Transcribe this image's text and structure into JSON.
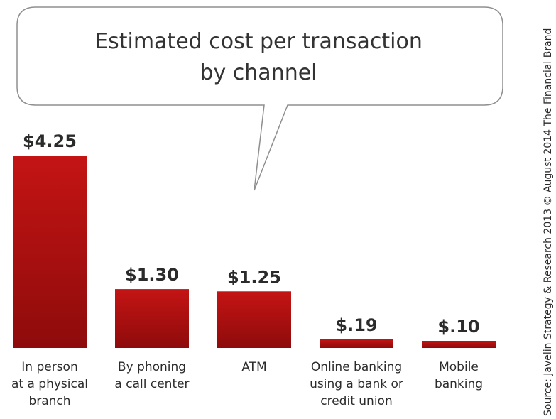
{
  "chart_data": {
    "type": "bar",
    "title": "Estimated cost per transaction by channel",
    "title_lines": [
      "Estimated cost per transaction",
      "by channel"
    ],
    "categories": [
      "In person at a physical branch",
      "By phoning a call center",
      "ATM",
      "Online banking using a bank or credit union",
      "Mobile banking"
    ],
    "category_lines": [
      [
        "In person",
        "at a physical",
        "branch"
      ],
      [
        "By phoning",
        "a call center"
      ],
      [
        "ATM"
      ],
      [
        "Online banking",
        "using a bank or",
        "credit union"
      ],
      [
        "Mobile",
        "banking"
      ]
    ],
    "values": [
      4.25,
      1.3,
      1.25,
      0.19,
      0.1
    ],
    "value_labels": [
      "$4.25",
      "$1.30",
      "$1.25",
      "$.19",
      "$.10"
    ],
    "xlabel": "",
    "ylabel": "",
    "ylim": [
      0,
      4.25
    ],
    "grid": false,
    "legend": "none",
    "bar_color": "#b01010",
    "bar_color_dark": "#8a0a0a"
  },
  "source": "Source: Javelin Strategy & Research 2013 © August 2014 The Financial Brand"
}
